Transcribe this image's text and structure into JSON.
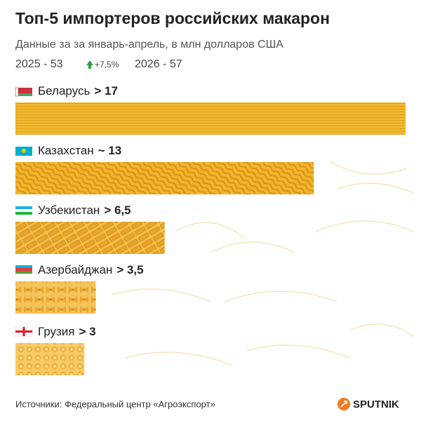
{
  "chart_data": {
    "type": "bar",
    "title": "Топ-5 импортеров российских макарон",
    "subtitle": "Данные за за январь-апрель, в млн долларов США",
    "annotations": [
      "2025 - 53",
      "+7,5%",
      "2026 - 57"
    ],
    "categories": [
      "Беларусь",
      "Казахстан",
      "Узбекистан",
      "Азербайджан",
      "Грузия"
    ],
    "values": [
      17,
      13,
      6.5,
      3.5,
      3
    ],
    "value_labels": [
      "> 17",
      "~ 13",
      "> 6,5",
      "> 3,5",
      "> 3"
    ],
    "color": "#f2b52a",
    "source": "Источники: Федеральный центр «Агроэкспорт»",
    "logo": "SPUTNIK"
  }
}
